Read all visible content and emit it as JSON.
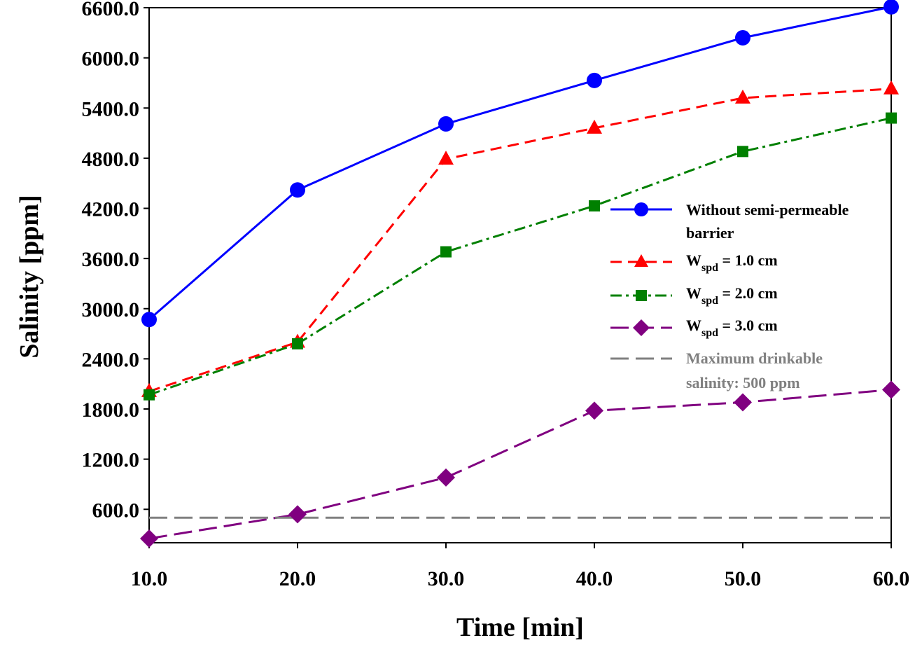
{
  "chart_data": {
    "type": "line",
    "title": "",
    "xlabel": "Time [min]",
    "ylabel": "Salinity [ppm]",
    "x": [
      10,
      20,
      30,
      40,
      50,
      60
    ],
    "xlim": [
      10,
      60
    ],
    "ylim": [
      200,
      6600
    ],
    "x_ticks": [
      "10.0",
      "20.0",
      "30.0",
      "40.0",
      "50.0",
      "60.0"
    ],
    "y_ticks": [
      "600.0",
      "1200.0",
      "1800.0",
      "2400.0",
      "3000.0",
      "3600.0",
      "4200.0",
      "4800.0",
      "5400.0",
      "6000.0",
      "6600.0"
    ],
    "grid": false,
    "legend_position": "right",
    "series": [
      {
        "name": "Without semi-permeable barrier",
        "values": [
          2870,
          4420,
          5210,
          5730,
          6240,
          6610
        ],
        "color": "#0000ff",
        "marker": "circle",
        "dash": "solid"
      },
      {
        "name": "Wspd = 1.0 cm",
        "values": [
          2010,
          2600,
          4790,
          5160,
          5520,
          5630
        ],
        "color": "#ff0000",
        "marker": "triangle",
        "dash": "dash"
      },
      {
        "name": "Wspd = 2.0 cm",
        "values": [
          1970,
          2580,
          3680,
          4230,
          4880,
          5280
        ],
        "color": "#008000",
        "marker": "square",
        "dash": "dashdot"
      },
      {
        "name": "Wspd = 3.0 cm",
        "values": [
          250,
          540,
          980,
          1780,
          1880,
          2030
        ],
        "color": "#800080",
        "marker": "diamond",
        "dash": "longdash"
      },
      {
        "name": "Maximum drinkable salinity: 500 ppm",
        "values": [
          500,
          500,
          500,
          500,
          500,
          500
        ],
        "color": "#808080",
        "marker": "none",
        "dash": "longdash"
      }
    ]
  },
  "legend": {
    "series0_line1": "Without semi-permeable",
    "series0_line2": "barrier",
    "w_prefix": "W",
    "w_sub": "spd",
    "series1_suffix": " = 1.0 cm",
    "series2_suffix": " = 2.0 cm",
    "series3_suffix": " = 3.0 cm",
    "series4_line1": "Maximum drinkable",
    "series4_line2": "salinity: 500 ppm"
  }
}
